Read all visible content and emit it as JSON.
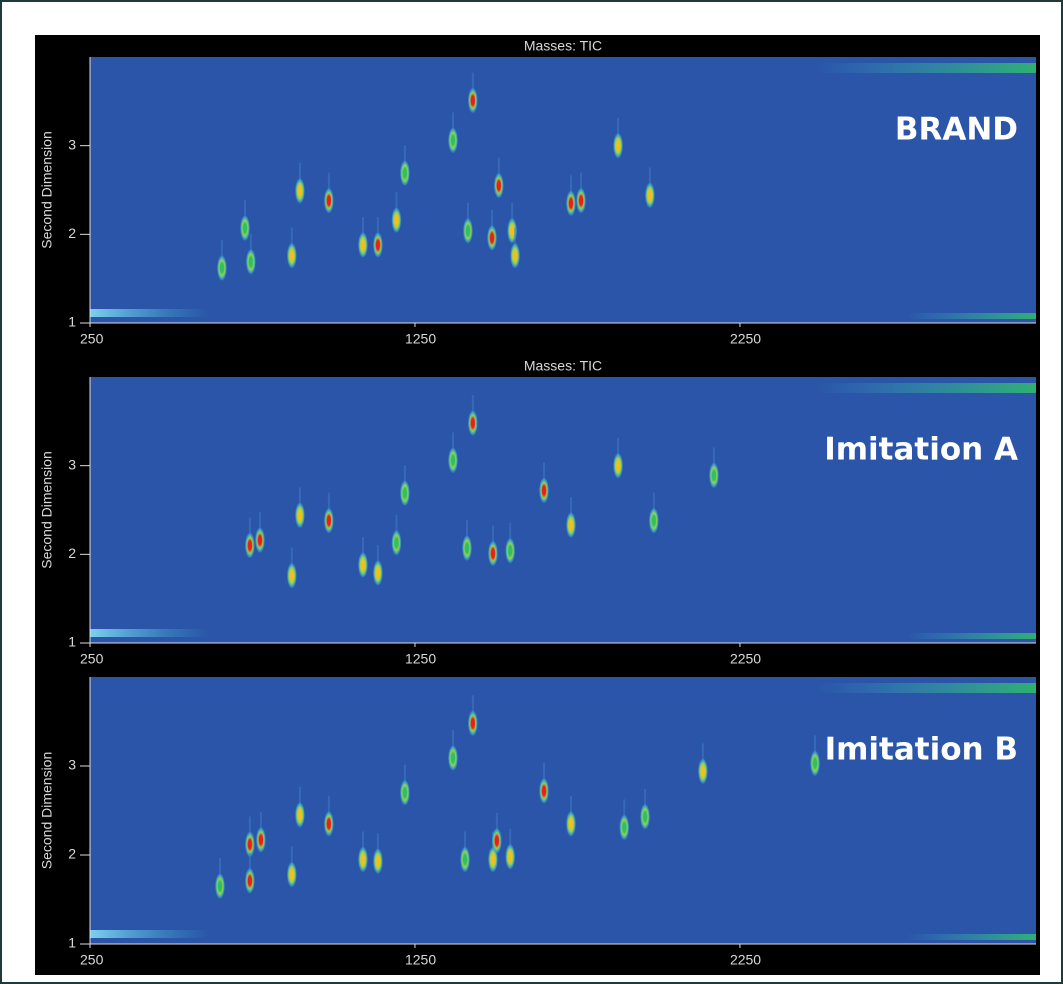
{
  "chart_data": [
    {
      "type": "contour",
      "title": "Masses: TIC",
      "panel_label": "BRAND",
      "ylabel": "Second Dimension",
      "xlim": [
        250,
        3161
      ],
      "ylim": [
        1,
        4
      ],
      "xticks": [
        250,
        1250,
        2250
      ],
      "yticks": [
        1,
        2,
        3
      ],
      "x": [
        1428,
        1508,
        1761,
        1730,
        985,
        896,
        1973,
        1487,
        1549,
        1136,
        1090,
        871,
        745,
        727,
        1875,
        1219,
        1367,
        656,
        1193,
        1413,
        1558
      ],
      "values": [
        3.51,
        2.55,
        2.38,
        2.35,
        2.38,
        2.49,
        2.44,
        1.96,
        2.04,
        1.88,
        1.88,
        1.76,
        1.69,
        2.07,
        3.0,
        2.69,
        3.06,
        1.62,
        2.16,
        2.04,
        1.76
      ],
      "peak_colors": [
        "#e8201c",
        "#e8201c",
        "#e8201c",
        "#e8201c",
        "#e8201c",
        "#f0c020",
        "#f0c020",
        "#e8201c",
        "#f0c020",
        "#e8201c",
        "#f0c020",
        "#f0c020",
        "#30c060",
        "#30c060",
        "#f0c020",
        "#30c060",
        "#30c060",
        "#30c060",
        "#f0c020",
        "#30c060",
        "#f0c020"
      ]
    },
    {
      "type": "contour",
      "title": "Masses: TIC",
      "panel_label": "Imitation A",
      "ylabel": "Second Dimension",
      "xlim": [
        250,
        3161
      ],
      "ylim": [
        1,
        4
      ],
      "xticks": [
        250,
        1250,
        2250
      ],
      "yticks": [
        1,
        2,
        3
      ],
      "x": [
        1428,
        1647,
        742,
        773,
        985,
        896,
        1730,
        1490,
        1543,
        1410,
        871,
        1136,
        1090,
        1875,
        1985,
        2170,
        1219,
        1367,
        1193
      ],
      "values": [
        3.48,
        2.72,
        2.1,
        2.16,
        2.38,
        2.44,
        2.33,
        2.01,
        2.04,
        2.07,
        1.76,
        1.79,
        1.88,
        3.0,
        2.38,
        2.89,
        2.69,
        3.06,
        2.13
      ],
      "peak_colors": [
        "#e8201c",
        "#e8201c",
        "#e8201c",
        "#e8201c",
        "#e8201c",
        "#f0c020",
        "#f0c020",
        "#e8201c",
        "#30c060",
        "#30c060",
        "#f0c020",
        "#f0c020",
        "#f0c020",
        "#f0c020",
        "#30c060",
        "#30c060",
        "#30c060",
        "#30c060",
        "#30c060"
      ]
    },
    {
      "type": "contour",
      "panel_label": "Imitation B",
      "ylabel": "Second Dimension",
      "xlim": [
        250,
        3161
      ],
      "ylim": [
        1,
        4
      ],
      "xticks": [
        250,
        1250,
        2250
      ],
      "yticks": [
        1,
        2,
        3
      ],
      "x": [
        1428,
        1647,
        742,
        776,
        742,
        985,
        896,
        1730,
        1490,
        1502,
        1404,
        1543,
        1958,
        1894,
        871,
        1136,
        1090,
        1219,
        1367,
        2136,
        2481,
        650
      ],
      "values": [
        3.48,
        2.72,
        2.12,
        2.17,
        1.71,
        2.35,
        2.45,
        2.35,
        1.95,
        2.16,
        1.95,
        1.98,
        2.43,
        2.31,
        1.78,
        1.93,
        1.95,
        2.7,
        3.09,
        2.94,
        3.03,
        1.65
      ],
      "peak_colors": [
        "#e8201c",
        "#e8201c",
        "#e8201c",
        "#e8201c",
        "#e8201c",
        "#e8201c",
        "#f0c020",
        "#f0c020",
        "#f0c020",
        "#e8201c",
        "#30c060",
        "#f0c020",
        "#30c060",
        "#30c060",
        "#f0c020",
        "#f0c020",
        "#f0c020",
        "#30c060",
        "#30c060",
        "#f0c020",
        "#30c060",
        "#30c060"
      ]
    }
  ]
}
